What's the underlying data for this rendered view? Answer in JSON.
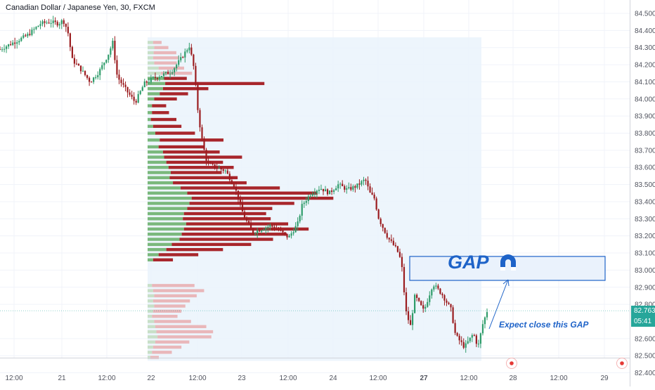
{
  "header": {
    "title": "Canadian Dollar / Japanese Yen, 30, FXCM"
  },
  "price_badges": {
    "last_price": "82.763",
    "countdown": "05:41"
  },
  "annotations": {
    "gap_label": "GAP",
    "note": "Expect close this GAP"
  },
  "colors": {
    "up": "#2e9c6a",
    "down": "#9b1c1f",
    "profile_up": "#7ab87c",
    "profile_down": "#a8262b",
    "profile_up_faint": "#c8e0c8",
    "profile_down_faint": "#e9b7ba",
    "range_fill": "#eaf3fb",
    "gap_box": "#1e63c8",
    "last_price_badge": "#26a69a",
    "event_marker": "#e53935"
  },
  "chart_data": {
    "type": "candlestick",
    "symbol": "CADJPY",
    "interval": "30",
    "y_axis": {
      "range": [
        82.37,
        84.53
      ],
      "ticks": [
        "84.500",
        "84.400",
        "84.300",
        "84.200",
        "84.100",
        "84.000",
        "83.900",
        "83.800",
        "83.700",
        "83.600",
        "83.500",
        "83.400",
        "83.300",
        "83.200",
        "83.100",
        "83.000",
        "82.900",
        "82.800",
        "82.600",
        "82.500",
        "82.400"
      ]
    },
    "x_axis": {
      "ticks": [
        "12:00",
        "21",
        "12:00",
        "22",
        "12:00",
        "23",
        "12:00",
        "24",
        "12:00",
        "27",
        "12:00",
        "28",
        "12:00",
        "29"
      ]
    },
    "price_path": [
      [
        0,
        84.29
      ],
      [
        3,
        84.33
      ],
      [
        6,
        84.37
      ],
      [
        9,
        84.44
      ],
      [
        11,
        84.45
      ],
      [
        13,
        84.44
      ],
      [
        14,
        84.46
      ],
      [
        15,
        84.4
      ],
      [
        16,
        84.23
      ],
      [
        18,
        84.17
      ],
      [
        20,
        84.1
      ],
      [
        22,
        84.16
      ],
      [
        24,
        84.26
      ],
      [
        25,
        84.33
      ],
      [
        26,
        84.13
      ],
      [
        28,
        84.05
      ],
      [
        30,
        83.98
      ],
      [
        32,
        84.09
      ],
      [
        34,
        84.12
      ],
      [
        36,
        84.14
      ],
      [
        38,
        84.16
      ],
      [
        40,
        84.23
      ],
      [
        42,
        84.31
      ],
      [
        43,
        84.18
      ],
      [
        44,
        83.9
      ],
      [
        45,
        83.73
      ],
      [
        46,
        83.62
      ],
      [
        48,
        83.6
      ],
      [
        50,
        83.58
      ],
      [
        52,
        83.49
      ],
      [
        54,
        83.32
      ],
      [
        56,
        83.22
      ],
      [
        58,
        83.24
      ],
      [
        60,
        83.26
      ],
      [
        62,
        83.23
      ],
      [
        64,
        83.19
      ],
      [
        66,
        83.27
      ],
      [
        67,
        83.38
      ],
      [
        69,
        83.45
      ],
      [
        71,
        83.48
      ],
      [
        73,
        83.45
      ],
      [
        75,
        83.5
      ],
      [
        77,
        83.47
      ],
      [
        79,
        83.49
      ],
      [
        81,
        83.53
      ],
      [
        82,
        83.45
      ],
      [
        83,
        83.42
      ],
      [
        84,
        83.3
      ],
      [
        86,
        83.19
      ],
      [
        88,
        83.12
      ],
      [
        89,
        83.05
      ],
      [
        90,
        82.76
      ],
      [
        91,
        82.67
      ],
      [
        92,
        82.85
      ],
      [
        94,
        82.76
      ],
      [
        96,
        82.92
      ],
      [
        98,
        82.86
      ],
      [
        100,
        82.77
      ],
      [
        101,
        82.62
      ],
      [
        103,
        82.55
      ],
      [
        105,
        82.63
      ],
      [
        106,
        82.55
      ],
      [
        107,
        82.68
      ],
      [
        108,
        82.76
      ]
    ],
    "volume_profile": {
      "range_box": {
        "price_high": 84.36,
        "price_low": 82.47
      },
      "levels": [
        [
          84.33,
          0.1,
          0.06
        ],
        [
          84.3,
          0.12,
          0.1
        ],
        [
          84.27,
          0.11,
          0.16
        ],
        [
          84.24,
          0.1,
          0.18
        ],
        [
          84.21,
          0.12,
          0.16
        ],
        [
          84.18,
          0.2,
          0.18
        ],
        [
          84.15,
          0.24,
          0.22
        ],
        [
          84.12,
          0.3,
          0.16
        ],
        [
          84.09,
          0.32,
          0.7
        ],
        [
          84.06,
          0.28,
          0.32
        ],
        [
          84.03,
          0.22,
          0.2
        ],
        [
          84.0,
          0.12,
          0.16
        ],
        [
          83.96,
          0.08,
          0.1
        ],
        [
          83.92,
          0.08,
          0.12
        ],
        [
          83.88,
          0.06,
          0.18
        ],
        [
          83.84,
          0.1,
          0.2
        ],
        [
          83.8,
          0.14,
          0.28
        ],
        [
          83.76,
          0.22,
          0.45
        ],
        [
          83.72,
          0.2,
          0.32
        ],
        [
          83.69,
          0.28,
          0.4
        ],
        [
          83.66,
          0.3,
          0.55
        ],
        [
          83.63,
          0.34,
          0.4
        ],
        [
          83.6,
          0.38,
          0.46
        ],
        [
          83.57,
          0.42,
          0.36
        ],
        [
          83.54,
          0.4,
          0.48
        ],
        [
          83.51,
          0.46,
          0.52
        ],
        [
          83.48,
          0.6,
          0.7
        ],
        [
          83.45,
          0.72,
          0.92
        ],
        [
          83.42,
          0.8,
          1.0
        ],
        [
          83.39,
          0.76,
          0.74
        ],
        [
          83.36,
          0.72,
          0.6
        ],
        [
          83.33,
          0.66,
          0.58
        ],
        [
          83.3,
          0.64,
          0.62
        ],
        [
          83.27,
          0.7,
          0.72
        ],
        [
          83.24,
          0.66,
          0.88
        ],
        [
          83.21,
          0.62,
          0.74
        ],
        [
          83.18,
          0.58,
          0.66
        ],
        [
          83.15,
          0.44,
          0.56
        ],
        [
          83.12,
          0.34,
          0.4
        ],
        [
          83.09,
          0.2,
          0.28
        ],
        [
          83.06,
          0.1,
          0.14
        ],
        [
          82.91,
          0.08,
          0.3
        ],
        [
          82.88,
          0.1,
          0.36
        ],
        [
          82.85,
          0.12,
          0.3
        ],
        [
          82.82,
          0.1,
          0.26
        ],
        [
          82.79,
          0.12,
          0.22
        ],
        [
          82.76,
          0.1,
          0.2
        ],
        [
          82.73,
          0.08,
          0.18
        ],
        [
          82.7,
          0.12,
          0.26
        ],
        [
          82.67,
          0.14,
          0.36
        ],
        [
          82.64,
          0.16,
          0.4
        ],
        [
          82.61,
          0.18,
          0.38
        ],
        [
          82.58,
          0.14,
          0.24
        ],
        [
          82.55,
          0.1,
          0.2
        ],
        [
          82.52,
          0.08,
          0.14
        ],
        [
          82.49,
          0.05,
          0.06
        ]
      ]
    },
    "gap_zone": {
      "price_high": 83.08,
      "price_low": 82.94
    },
    "last_price": 82.763,
    "grid": true
  }
}
